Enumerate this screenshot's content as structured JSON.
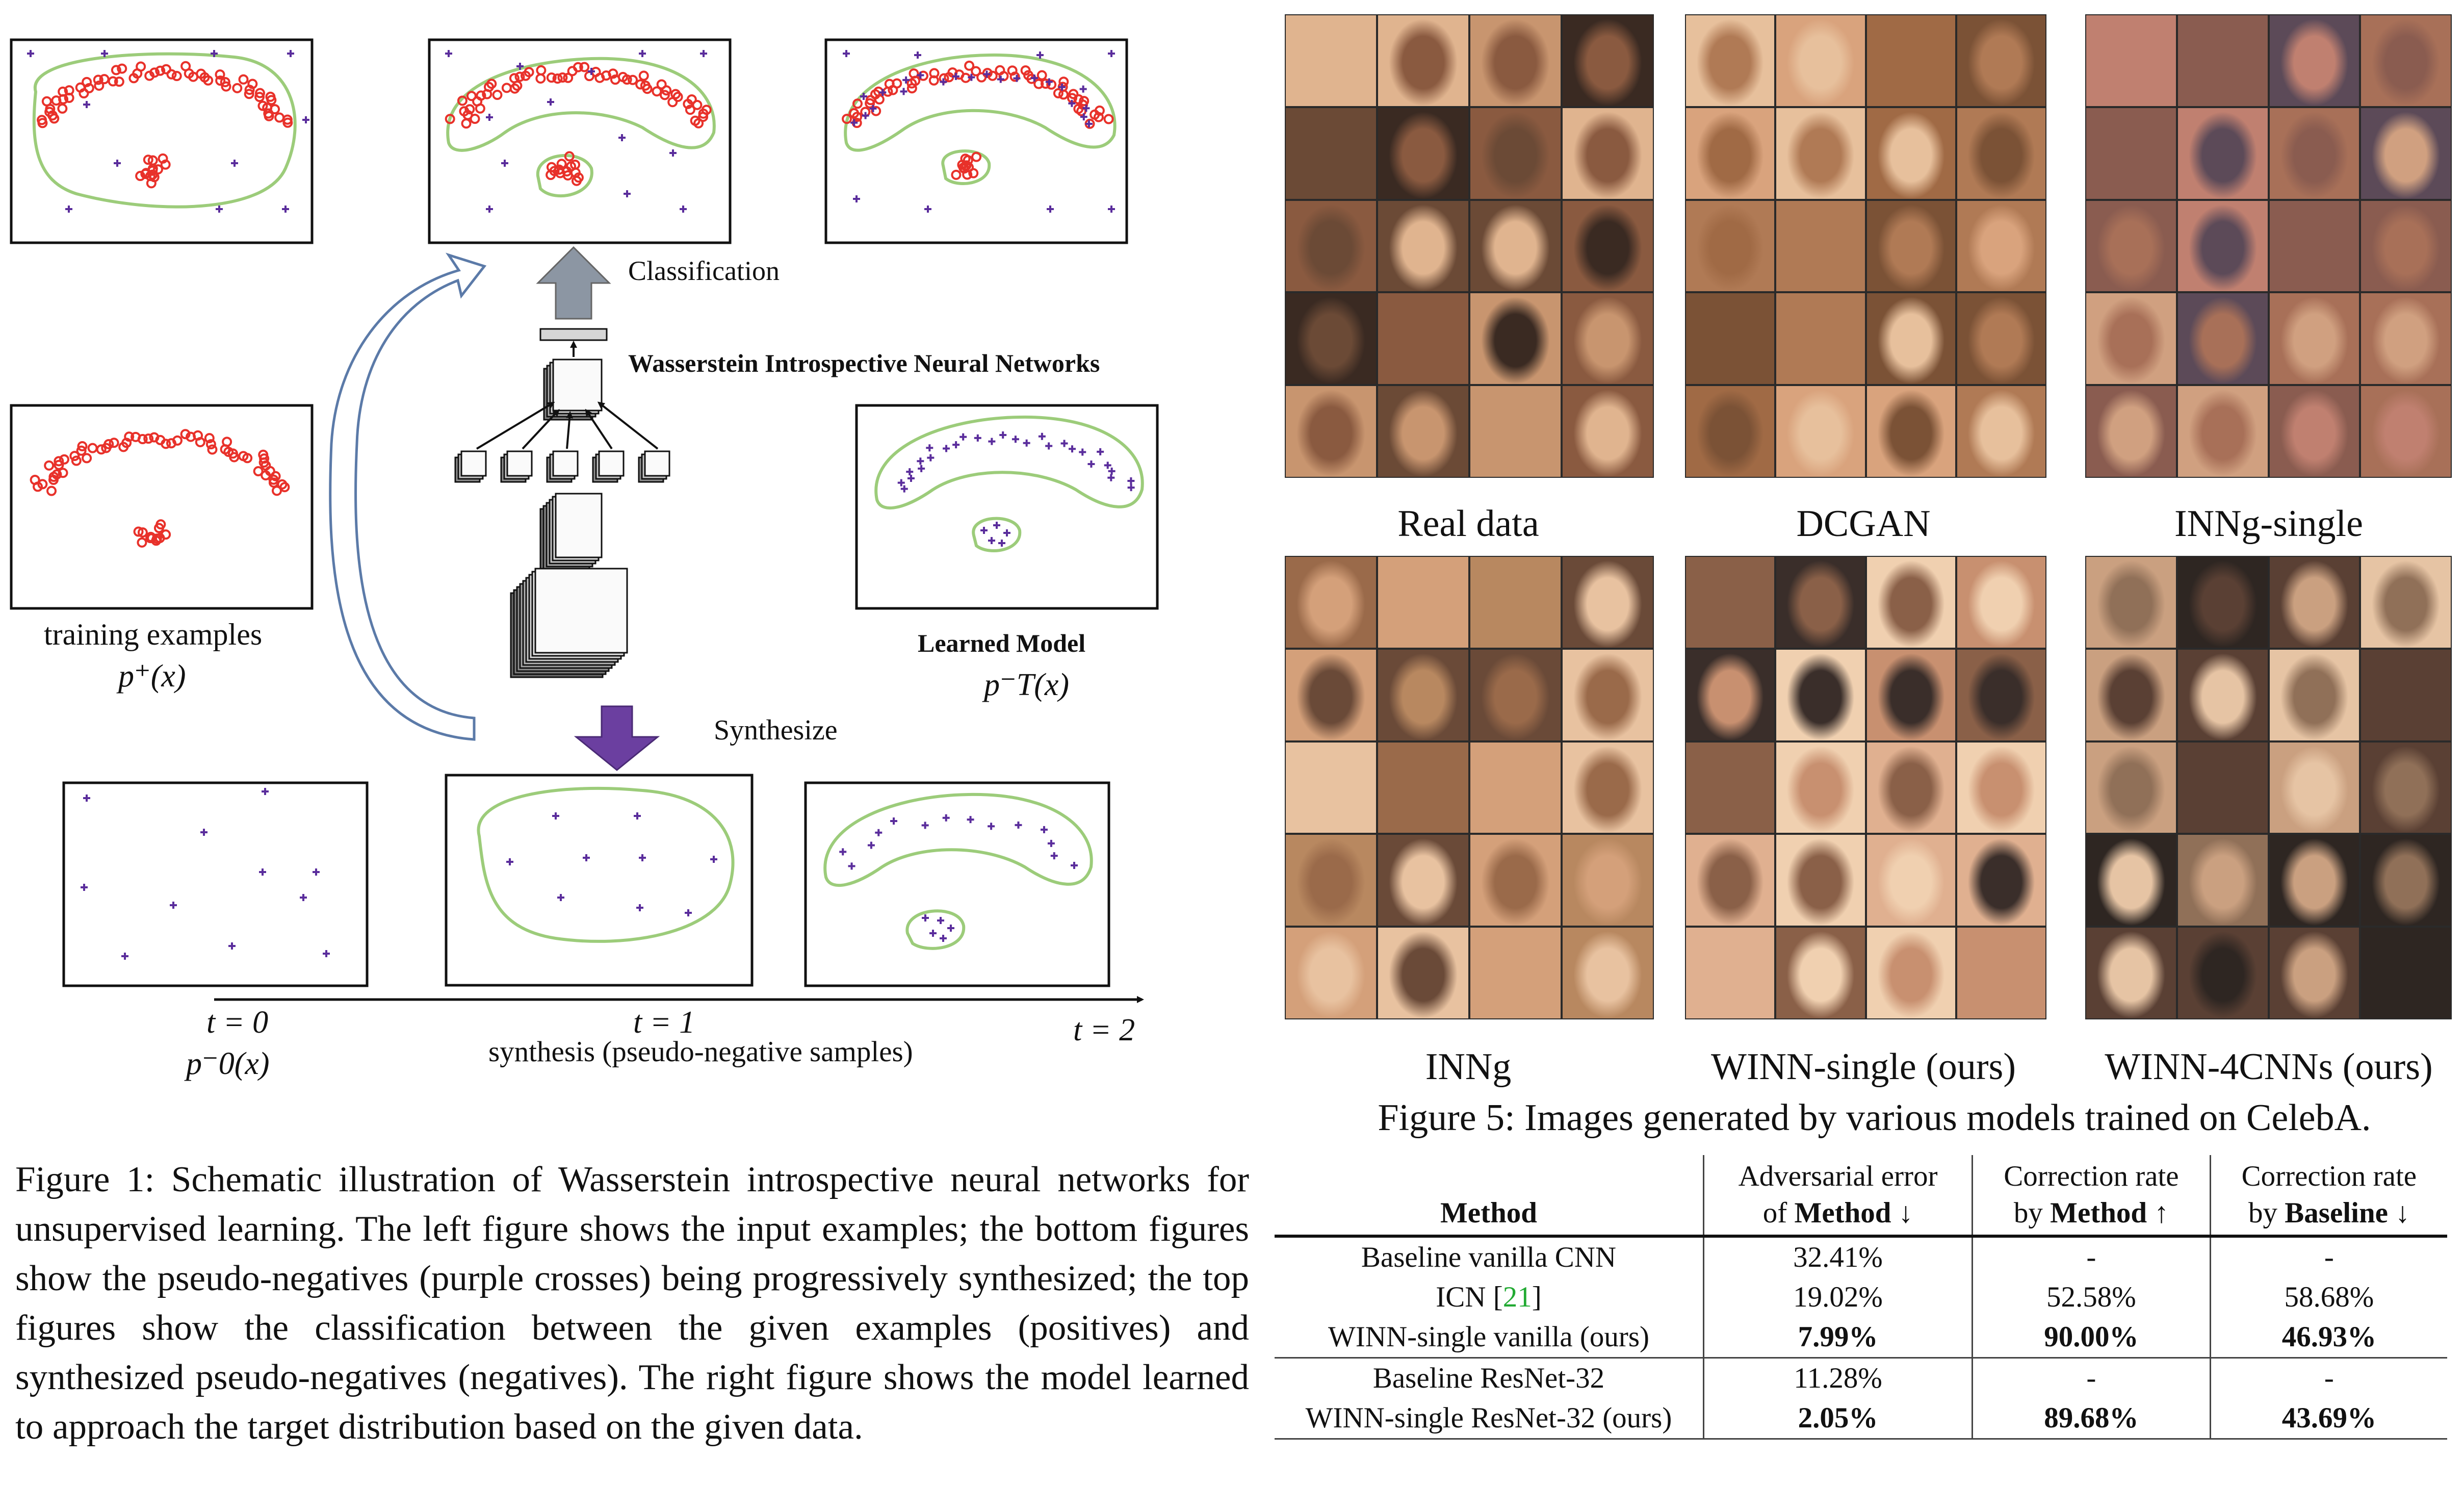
{
  "figure1": {
    "classification_label": "Classification",
    "network_label": "Wasserstein Introspective Neural Networks",
    "training_label": "training examples",
    "training_math": "p⁺(x)",
    "learned_label": "Learned Model",
    "learned_math": "p⁻T(x)",
    "synthesize_label": "Synthesize",
    "t0_label": "t = 0",
    "t0_math": "p⁻0(x)",
    "t1_label": "t = 1",
    "t1_sub": "synthesis (pseudo-negative samples)",
    "t2_label": "t = 2",
    "caption": "Figure 1: Schematic illustration of Wasserstein introspective neural networks for unsupervised learning. The left figure shows the input examples; the bottom figures show the pseudo-negatives (purple crosses) being progressively synthesized; the top figures show the classification between the given examples (positives) and synthesized pseudo-negatives (negatives). The right figure shows the model learned to approach the target distribution based on the given data.",
    "colors": {
      "positive": "#e8312a",
      "negative": "#5a2d9c",
      "boundary": "#9ccc7a",
      "arrow_gray": "#8c96a3",
      "arrow_purple": "#6b3fa0",
      "arrow_outline": "#5b7aa8"
    }
  },
  "figure5": {
    "caption": "Figure 5: Images generated by various models trained on CelebA.",
    "grids": [
      {
        "label": "Real data"
      },
      {
        "label": "DCGAN"
      },
      {
        "label": "INNg-single"
      },
      {
        "label": "INNg"
      },
      {
        "label": "WINN-single (ours)"
      },
      {
        "label": "WINN-4CNNs (ours)"
      }
    ]
  },
  "table": {
    "headers": [
      {
        "line1": "",
        "line2_pre": "",
        "line2_bold": "Method",
        "line2_post": ""
      },
      {
        "line1": "Adversarial error",
        "line2_pre": "of ",
        "line2_bold": "Method",
        "line2_post": " ↓"
      },
      {
        "line1": "Correction rate",
        "line2_pre": "by ",
        "line2_bold": "Method",
        "line2_post": " ↑"
      },
      {
        "line1": "Correction rate",
        "line2_pre": "by ",
        "line2_bold": "Baseline",
        "line2_post": " ↓"
      }
    ],
    "rows": [
      {
        "method": "Baseline vanilla CNN",
        "ref": "",
        "method_post": "",
        "adv": "32.41%",
        "corr_m": "-",
        "corr_b": "-"
      },
      {
        "method": "ICN [",
        "ref": "21",
        "method_post": "]",
        "adv": "19.02%",
        "corr_m": "52.58%",
        "corr_b": "58.68%"
      },
      {
        "method": "WINN-single vanilla (ours)",
        "ref": "",
        "method_post": "",
        "adv": "7.99%",
        "corr_m": "90.00%",
        "corr_b": "46.93%"
      },
      {
        "method": "Baseline ResNet-32",
        "ref": "",
        "method_post": "",
        "adv": "11.28%",
        "corr_m": "-",
        "corr_b": "-"
      },
      {
        "method": "WINN-single ResNet-32 (ours)",
        "ref": "",
        "method_post": "",
        "adv": "2.05%",
        "corr_m": "89.68%",
        "corr_b": "43.69%"
      }
    ]
  }
}
